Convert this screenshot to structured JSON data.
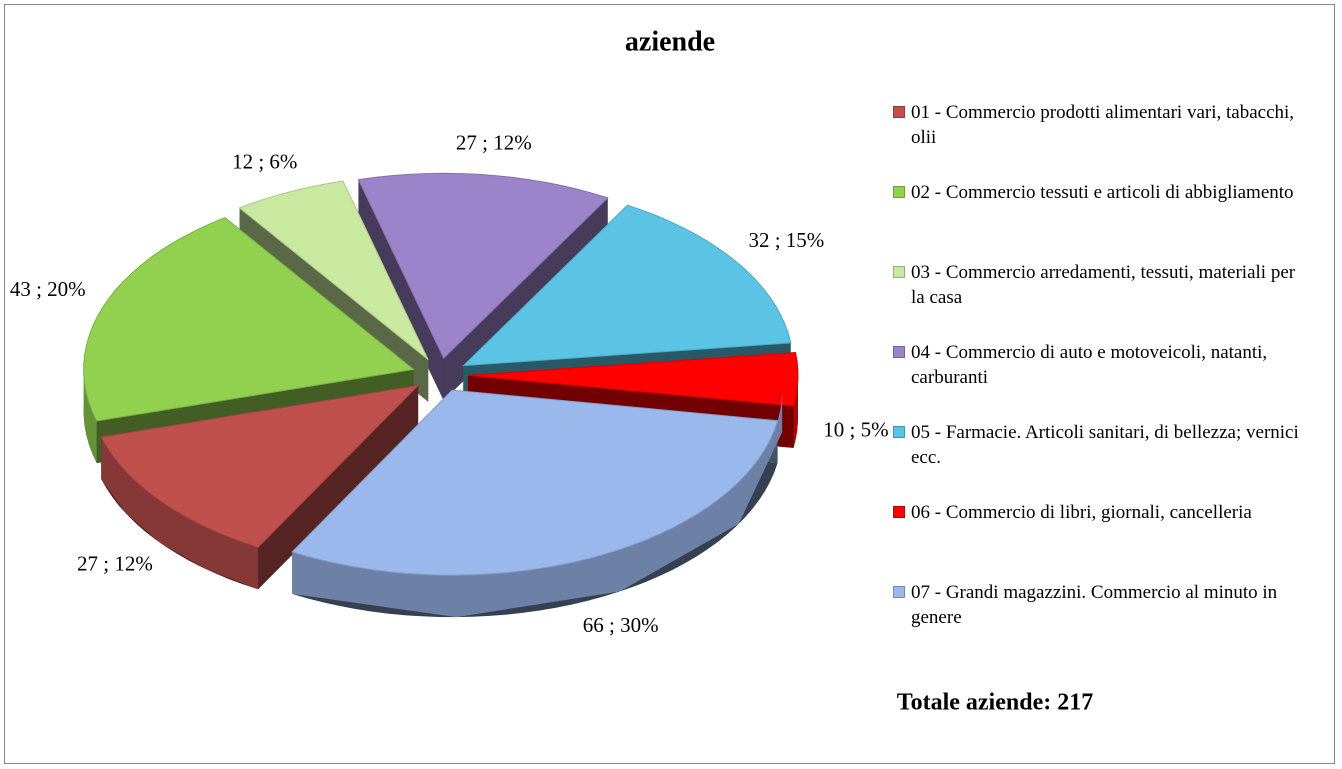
{
  "chart_data": {
    "type": "pie",
    "title": "aziende",
    "categories": [
      "01 - Commercio prodotti alimentari vari, tabacchi, olii",
      "02 - Commercio tessuti e articoli di abbigliamento",
      "03 - Commercio arredamenti, tessuti, materiali per la casa",
      "04 - Commercio di auto e motoveicoli, natanti, carburanti",
      "05 - Farmacie. Articoli sanitari, di bellezza; vernici ecc.",
      "06 - Commercio di libri, giornali, cancelleria",
      "07 - Grandi magazzini. Commercio al minuto in genere"
    ],
    "values": [
      27,
      43,
      12,
      27,
      32,
      10,
      66
    ],
    "value_labels": [
      "27 ; 12%",
      "43 ; 20%",
      "12 ; 6%",
      "27 ; 12%",
      "32 ; 15%",
      "10 ; 5%",
      "66 ; 30%"
    ],
    "colors": [
      "#c0504d",
      "#92d050",
      "#c9e8a0",
      "#9b84c9",
      "#5bc4e4",
      "#ff0000",
      "#9ab8ec"
    ],
    "legend": "right",
    "annotation": "Totale aziende: 217"
  }
}
